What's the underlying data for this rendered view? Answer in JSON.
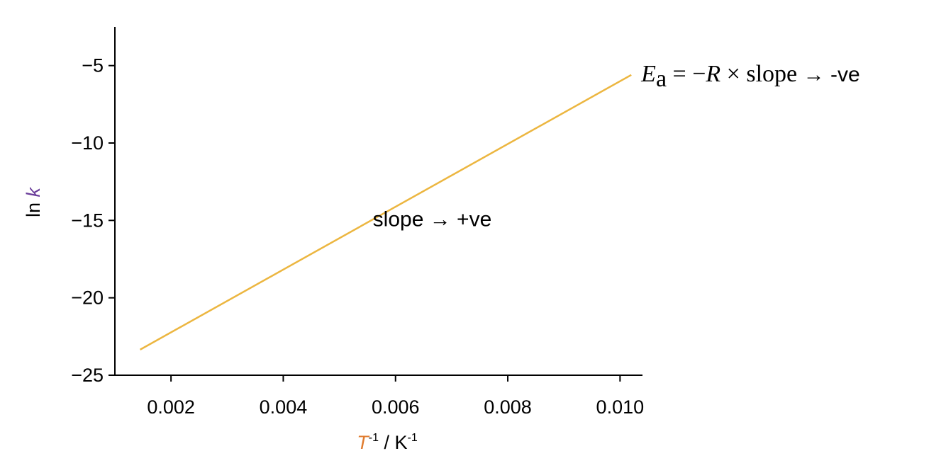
{
  "chart_data": {
    "type": "line",
    "xlabel": {
      "symbol": "T",
      "symbol_sup": "-1",
      "unit": " / K",
      "unit_sup": "-1"
    },
    "ylabel": {
      "prefix": "ln ",
      "symbol": "k"
    },
    "xlim": [
      0.001,
      0.0104
    ],
    "ylim": [
      -25,
      -2.5
    ],
    "xticks": [
      0.002,
      0.004,
      0.006,
      0.008,
      0.01
    ],
    "xtick_labels": [
      "0.002",
      "0.004",
      "0.006",
      "0.008",
      "0.010"
    ],
    "yticks": [
      -25,
      -20,
      -15,
      -10,
      -5
    ],
    "ytick_labels": [
      "−25",
      "−20",
      "−15",
      "−10",
      "−5"
    ],
    "series": [
      {
        "x": [
          0.00145,
          0.0102
        ],
        "y": [
          -23.35,
          -5.6
        ]
      }
    ],
    "annotations": {
      "inner": {
        "text": "slope → +ve",
        "x": 0.0075,
        "y": -15
      },
      "end": {
        "E": "E",
        "a": "a",
        "equals_minus": " = −",
        "R": "R",
        "times_slope": " × slope ",
        "arrow": "→ -ve"
      }
    },
    "colors": {
      "line": "#ecb640",
      "T": "#e07b2e",
      "k": "#6a3d9a",
      "E": "#ecb640",
      "R": "#2c6391",
      "axis": "#000000"
    },
    "grid": false,
    "legend": "none"
  }
}
